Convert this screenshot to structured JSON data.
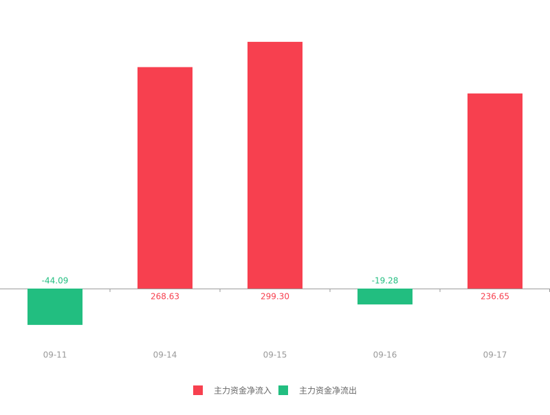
{
  "chart_data": {
    "type": "bar",
    "categories": [
      "09-11",
      "09-14",
      "09-15",
      "09-16",
      "09-17"
    ],
    "series": [
      {
        "name": "主力资金净流入",
        "color": "#f7404f",
        "values": [
          null,
          268.63,
          299.3,
          null,
          236.65
        ],
        "value_labels": [
          null,
          "268.63",
          "299.30",
          null,
          "236.65"
        ]
      },
      {
        "name": "主力资金净流出",
        "color": "#22be80",
        "values": [
          -44.09,
          null,
          null,
          -19.28,
          null
        ],
        "value_labels": [
          "-44.09",
          null,
          null,
          "-19.28",
          null
        ]
      }
    ],
    "ylim": [
      -66.7,
      316.7
    ]
  }
}
